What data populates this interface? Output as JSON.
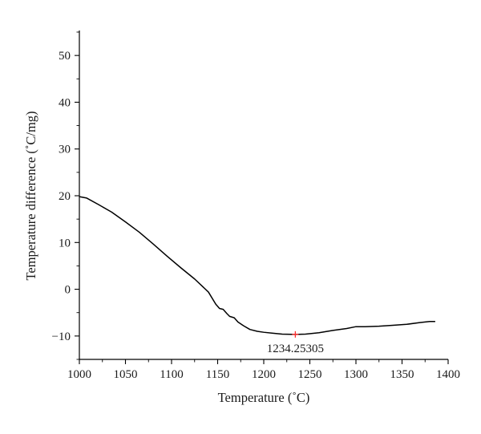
{
  "chart_data": {
    "type": "line",
    "title": "",
    "xlabel": "Temperature (˚C)",
    "ylabel": "Temperature difference (˚C/mg)",
    "xlim": [
      1000,
      1400
    ],
    "ylim": [
      -15,
      55
    ],
    "x_ticks": [
      "1000",
      "1050",
      "1100",
      "1150",
      "1200",
      "1250",
      "1300",
      "1350",
      "1400"
    ],
    "y_ticks": [
      "−10",
      "0",
      "10",
      "20",
      "30",
      "40",
      "50"
    ],
    "grid": false,
    "legend": "none",
    "series": [
      {
        "color": "#000000",
        "x": [
          1000,
          1008,
          1020,
          1035,
          1050,
          1065,
          1080,
          1095,
          1110,
          1125,
          1140,
          1148,
          1152,
          1156,
          1160,
          1163,
          1168,
          1172,
          1178,
          1185,
          1193,
          1200,
          1210,
          1220,
          1234.25,
          1245,
          1260,
          1275,
          1290,
          1300,
          1310,
          1325,
          1340,
          1355,
          1370,
          1380,
          1386
        ],
        "y": [
          19.8,
          19.5,
          18.2,
          16.5,
          14.4,
          12.2,
          9.7,
          7.1,
          4.6,
          2.2,
          -0.6,
          -3.2,
          -4.1,
          -4.3,
          -5.2,
          -5.8,
          -6.1,
          -7.0,
          -7.8,
          -8.6,
          -9.0,
          -9.2,
          -9.4,
          -9.6,
          -9.65,
          -9.6,
          -9.3,
          -8.8,
          -8.4,
          -8.0,
          -8.0,
          -7.9,
          -7.7,
          -7.5,
          -7.1,
          -6.9,
          -6.9
        ]
      }
    ],
    "annotations": [
      {
        "label": "1234.25305",
        "x": 1234.25305,
        "y": -9.65,
        "marker_color": "#ff2a2a"
      }
    ]
  }
}
